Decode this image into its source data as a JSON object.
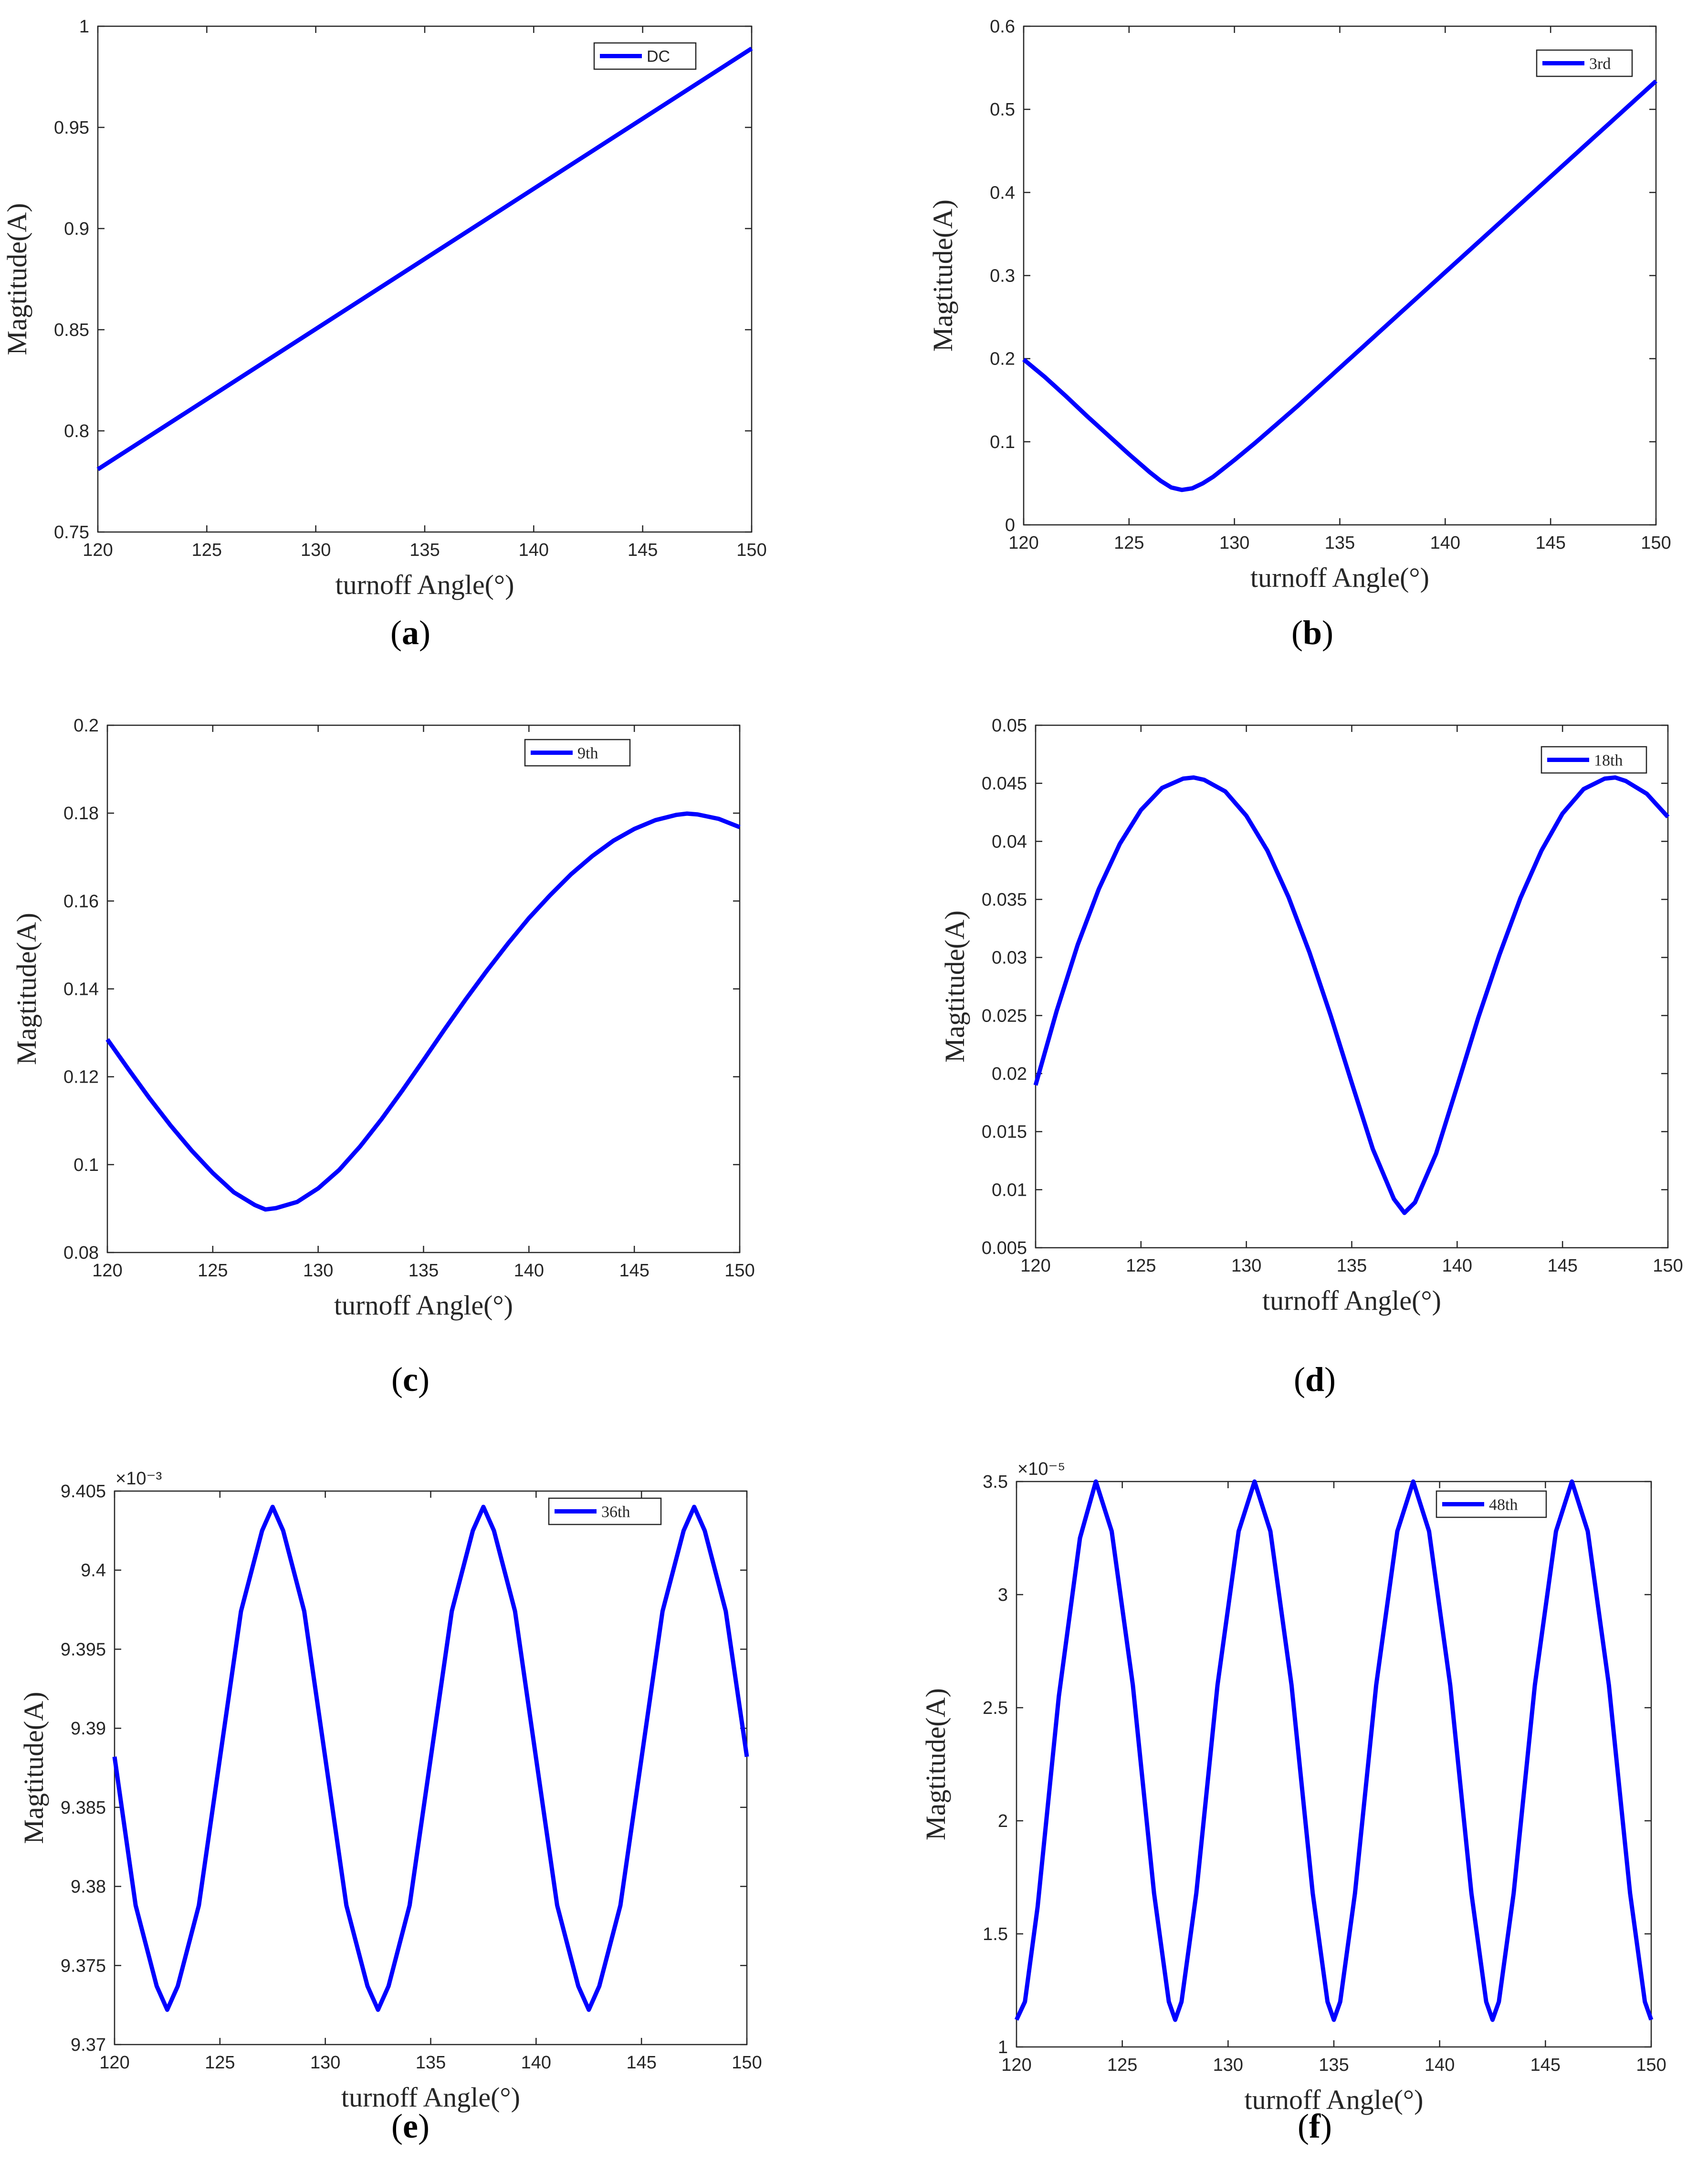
{
  "line_color": "#0000ff",
  "chart_data": [
    {
      "type": "line",
      "caption_letter": "a",
      "xlabel": "turnoff Angle(°)",
      "ylabel": "Magtitude(A)",
      "xlim": [
        120,
        150
      ],
      "ylim": [
        0.75,
        1.0
      ],
      "x_ticks": [
        120,
        125,
        130,
        135,
        140,
        145,
        150
      ],
      "x_tick_labels": [
        "120",
        "125",
        "130",
        "135",
        "140",
        "145",
        "150"
      ],
      "y_ticks": [
        0.75,
        0.8,
        0.85,
        0.9,
        0.95,
        1.0
      ],
      "y_tick_labels": [
        "0.75",
        "0.8",
        "0.85",
        "0.9",
        "0.95",
        "1"
      ],
      "exponent_label": "",
      "legend_position": "top-right",
      "series": [
        {
          "name": "DC",
          "x": [
            120,
            150
          ],
          "y": [
            0.781,
            0.989
          ]
        }
      ]
    },
    {
      "type": "line",
      "caption_letter": "b",
      "xlabel": "turnoff Angle(°)",
      "ylabel": "Magtitude(A)",
      "xlim": [
        120,
        150
      ],
      "ylim": [
        0,
        0.6
      ],
      "x_ticks": [
        120,
        125,
        130,
        135,
        140,
        145,
        150
      ],
      "x_tick_labels": [
        "120",
        "125",
        "130",
        "135",
        "140",
        "145",
        "150"
      ],
      "y_ticks": [
        0,
        0.1,
        0.2,
        0.3,
        0.4,
        0.5,
        0.6
      ],
      "y_tick_labels": [
        "0",
        "0.1",
        "0.2",
        "0.3",
        "0.4",
        "0.5",
        "0.6"
      ],
      "exponent_label": "",
      "legend_position": "top-right",
      "series": [
        {
          "name": "3rd",
          "x": [
            120,
            121,
            122,
            123,
            124,
            125,
            126,
            126.5,
            127,
            127.5,
            128,
            128.5,
            129,
            130,
            131,
            132,
            133,
            134,
            135,
            136,
            137,
            138,
            139,
            140,
            141,
            142,
            143,
            144,
            145,
            146,
            147,
            148,
            149,
            150
          ],
          "y": [
            0.199,
            0.178,
            0.155,
            0.131,
            0.108,
            0.085,
            0.063,
            0.053,
            0.045,
            0.042,
            0.044,
            0.05,
            0.058,
            0.078,
            0.099,
            0.121,
            0.143,
            0.166,
            0.189,
            0.212,
            0.235,
            0.258,
            0.281,
            0.304,
            0.327,
            0.35,
            0.373,
            0.396,
            0.419,
            0.442,
            0.465,
            0.488,
            0.511,
            0.534
          ]
        }
      ]
    },
    {
      "type": "line",
      "caption_letter": "c",
      "xlabel": "turnoff Angle(°)",
      "ylabel": "Magtitude(A)",
      "xlim": [
        120,
        150
      ],
      "ylim": [
        0.08,
        0.2
      ],
      "x_ticks": [
        120,
        125,
        130,
        135,
        140,
        145,
        150
      ],
      "x_tick_labels": [
        "120",
        "125",
        "130",
        "135",
        "140",
        "145",
        "150"
      ],
      "y_ticks": [
        0.08,
        0.1,
        0.12,
        0.14,
        0.16,
        0.18,
        0.2
      ],
      "y_tick_labels": [
        "0.08",
        "0.1",
        "0.12",
        "0.14",
        "0.16",
        "0.18",
        "0.2"
      ],
      "exponent_label": "",
      "legend_position": "top-right",
      "series": [
        {
          "name": "9th",
          "x": [
            120,
            121,
            122,
            123,
            124,
            125,
            126,
            127,
            127.5,
            128,
            129,
            130,
            131,
            132,
            133,
            134,
            135,
            136,
            137,
            138,
            139,
            140,
            141,
            142,
            143,
            144,
            145,
            146,
            147,
            147.5,
            148,
            149,
            150
          ],
          "y": [
            0.1285,
            0.1217,
            0.1151,
            0.1089,
            0.1032,
            0.0981,
            0.0937,
            0.0908,
            0.0898,
            0.0901,
            0.0915,
            0.0946,
            0.0988,
            0.1042,
            0.1103,
            0.1169,
            0.1238,
            0.1308,
            0.1376,
            0.1441,
            0.1503,
            0.1561,
            0.1613,
            0.1661,
            0.1702,
            0.1737,
            0.1764,
            0.1784,
            0.1796,
            0.1799,
            0.1797,
            0.1787,
            0.1768
          ]
        }
      ]
    },
    {
      "type": "line",
      "caption_letter": "d",
      "xlabel": "turnoff Angle(°)",
      "ylabel": "Magtitude(A)",
      "xlim": [
        120,
        150
      ],
      "ylim": [
        0.005,
        0.05
      ],
      "x_ticks": [
        120,
        125,
        130,
        135,
        140,
        145,
        150
      ],
      "x_tick_labels": [
        "120",
        "125",
        "130",
        "135",
        "140",
        "145",
        "150"
      ],
      "y_ticks": [
        0.005,
        0.01,
        0.015,
        0.02,
        0.025,
        0.03,
        0.035,
        0.04,
        0.045,
        0.05
      ],
      "y_tick_labels": [
        "0.005",
        "0.01",
        "0.015",
        "0.02",
        "0.025",
        "0.03",
        "0.035",
        "0.04",
        "0.045",
        "0.05"
      ],
      "exponent_label": "",
      "legend_position": "top-right",
      "series": [
        {
          "name": "18th",
          "x": [
            120,
            121,
            122,
            123,
            124,
            125,
            126,
            127,
            127.5,
            128,
            129,
            130,
            131,
            132,
            133,
            134,
            135,
            136,
            137,
            137.5,
            138,
            139,
            140,
            141,
            142,
            143,
            144,
            145,
            146,
            147,
            147.5,
            148,
            149,
            150
          ],
          "y": [
            0.019,
            0.0254,
            0.0311,
            0.0359,
            0.0398,
            0.0427,
            0.0446,
            0.0454,
            0.0455,
            0.0453,
            0.0443,
            0.0422,
            0.0392,
            0.0352,
            0.0304,
            0.025,
            0.0192,
            0.0135,
            0.0092,
            0.008,
            0.0089,
            0.0131,
            0.0189,
            0.0248,
            0.0302,
            0.0351,
            0.0392,
            0.0424,
            0.0445,
            0.0454,
            0.0455,
            0.0452,
            0.0441,
            0.0421
          ]
        }
      ]
    },
    {
      "type": "line",
      "caption_letter": "e",
      "xlabel": "turnoff Angle(°)",
      "ylabel": "Magtitude(A)",
      "xlim": [
        120,
        150
      ],
      "ylim": [
        9.37,
        9.405
      ],
      "x_ticks": [
        120,
        125,
        130,
        135,
        140,
        145,
        150
      ],
      "x_tick_labels": [
        "120",
        "125",
        "130",
        "135",
        "140",
        "145",
        "150"
      ],
      "y_ticks": [
        9.37,
        9.375,
        9.38,
        9.385,
        9.39,
        9.395,
        9.4,
        9.405
      ],
      "y_tick_labels": [
        "9.37",
        "9.375",
        "9.38",
        "9.385",
        "9.39",
        "9.395",
        "9.4",
        "9.405"
      ],
      "exponent_label": "×10⁻³",
      "legend_position": "top-right",
      "series": [
        {
          "name": "36th",
          "x": [
            120,
            121,
            122,
            122.5,
            123,
            124,
            125,
            126,
            127,
            127.5,
            128,
            129,
            130,
            131,
            132,
            132.5,
            133,
            134,
            135,
            136,
            137,
            137.5,
            138,
            139,
            140,
            141,
            142,
            142.5,
            143,
            144,
            145,
            146,
            147,
            147.5,
            148,
            149,
            150
          ],
          "y": [
            9.3882,
            9.3788,
            9.3737,
            9.3722,
            9.3737,
            9.3788,
            9.3881,
            9.3974,
            9.4025,
            9.404,
            9.4025,
            9.3974,
            9.3881,
            9.3788,
            9.3737,
            9.3722,
            9.3737,
            9.3788,
            9.3881,
            9.3974,
            9.4025,
            9.404,
            9.4025,
            9.3974,
            9.3881,
            9.3788,
            9.3737,
            9.3722,
            9.3737,
            9.3788,
            9.3881,
            9.3974,
            9.4025,
            9.404,
            9.4025,
            9.3974,
            9.3882
          ]
        }
      ]
    },
    {
      "type": "line",
      "caption_letter": "f",
      "xlabel": "turnoff Angle(°)",
      "ylabel": "Magtitude(A)",
      "xlim": [
        120,
        150
      ],
      "ylim": [
        1,
        3.5
      ],
      "x_ticks": [
        120,
        125,
        130,
        135,
        140,
        145,
        150
      ],
      "x_tick_labels": [
        "120",
        "125",
        "130",
        "135",
        "140",
        "145",
        "150"
      ],
      "y_ticks": [
        1,
        1.5,
        2,
        2.5,
        3,
        3.5
      ],
      "y_tick_labels": [
        "1",
        "1.5",
        "2",
        "2.5",
        "3",
        "3.5"
      ],
      "exponent_label": "×10⁻⁵",
      "legend_position": "top-right",
      "series": [
        {
          "name": "48th",
          "x": [
            120,
            120.4,
            121,
            122,
            123,
            123.75,
            124.5,
            125.5,
            126.5,
            127.2,
            127.5,
            127.8,
            128.5,
            129.5,
            130.5,
            131.25,
            132,
            133,
            134,
            134.7,
            135,
            135.3,
            136,
            137,
            138,
            138.75,
            139.5,
            140.5,
            141.5,
            142.2,
            142.5,
            142.8,
            143.5,
            144.5,
            145.5,
            146.25,
            147,
            148,
            149,
            149.7,
            150
          ],
          "y": [
            1.12,
            1.2,
            1.62,
            2.55,
            3.25,
            3.5,
            3.28,
            2.6,
            1.68,
            1.2,
            1.12,
            1.2,
            1.68,
            2.6,
            3.28,
            3.5,
            3.28,
            2.6,
            1.68,
            1.2,
            1.12,
            1.2,
            1.68,
            2.6,
            3.28,
            3.5,
            3.28,
            2.6,
            1.68,
            1.2,
            1.12,
            1.2,
            1.68,
            2.6,
            3.28,
            3.5,
            3.28,
            2.6,
            1.68,
            1.2,
            1.12
          ]
        }
      ]
    }
  ]
}
